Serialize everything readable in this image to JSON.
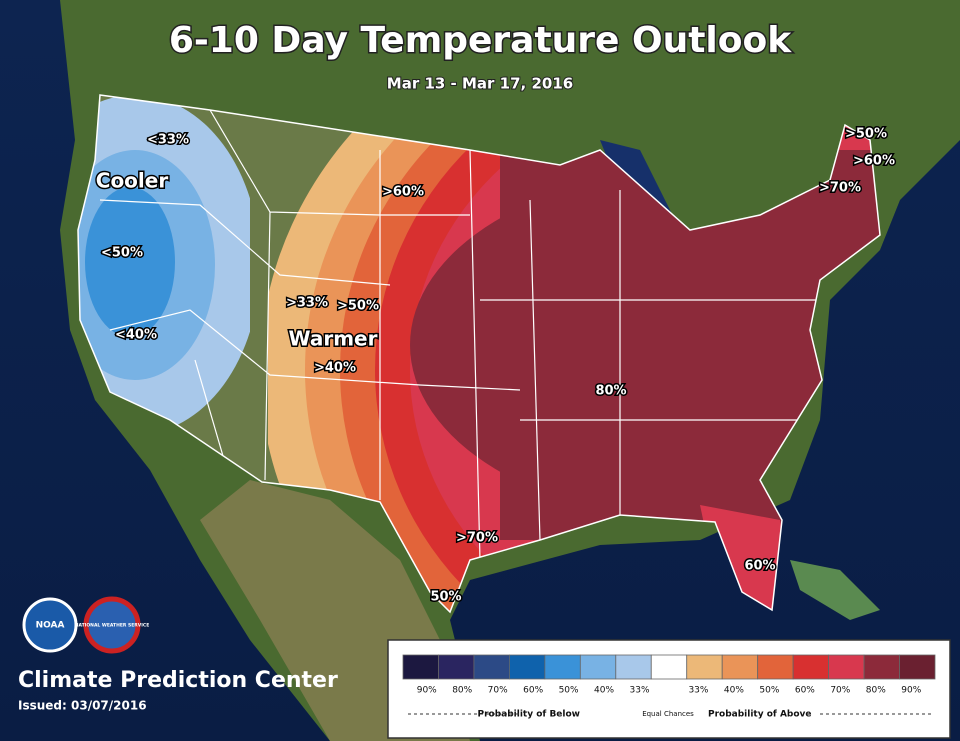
{
  "title": "6-10 Day Temperature Outlook",
  "subtitle": "Mar 13 - Mar 17, 2016",
  "map_labels": [
    "<33%",
    "Cooler",
    "<50%",
    "<40%",
    ">60%",
    ">33%",
    ">50%",
    "Warmer",
    ">40%",
    ">50%",
    ">60%",
    ">70%",
    "80%",
    ">70%",
    "60%",
    "50%"
  ],
  "logos": [
    "NOAA",
    "NATIONAL WEATHER SERVICE"
  ],
  "footer": {
    "center": "Climate Prediction Center",
    "issued": "Issued: 03/07/2016"
  },
  "legend": {
    "colors": [
      "#1c1840",
      "#2a2560",
      "#2c4a86",
      "#0f62ac",
      "#3a92d8",
      "#78b2e4",
      "#a8c8ea",
      "#ffffff",
      "#ecb878",
      "#ea9458",
      "#e2643a",
      "#d83030",
      "#d8384e",
      "#8c2a3a",
      "#6a2030"
    ],
    "labels": [
      "90%",
      "80%",
      "70%",
      "60%",
      "50%",
      "40%",
      "33%",
      "33%",
      "40%",
      "50%",
      "60%",
      "70%",
      "80%",
      "90%"
    ],
    "below": "Probability of Below",
    "equal": "Equal Chances",
    "above": "Probability of Above"
  }
}
